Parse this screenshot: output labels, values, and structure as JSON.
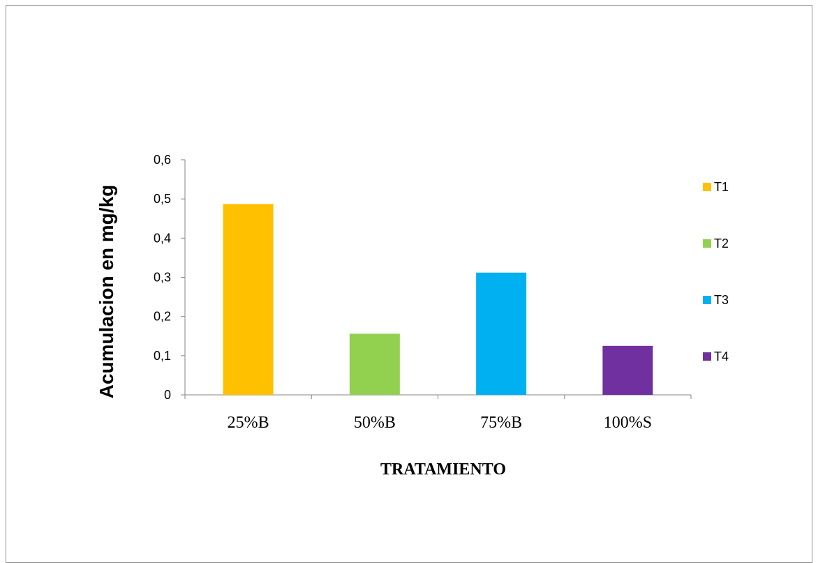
{
  "chart_data": {
    "type": "bar",
    "categories": [
      "25%B",
      "50%B",
      "75%B",
      "100%S"
    ],
    "values": [
      0.487,
      0.156,
      0.312,
      0.125
    ],
    "colors": [
      "#FFC000",
      "#92D050",
      "#00B0F0",
      "#7030A0"
    ],
    "legend": {
      "position": "right",
      "entries": [
        "T1",
        "T2",
        "T3",
        "T4"
      ]
    },
    "title": "",
    "xlabel": "TRATAMIENTO",
    "ylabel": "Acumulacion en  mg/kg",
    "ylim": [
      0,
      0.6
    ],
    "yticks": [
      0,
      0.1,
      0.2,
      0.3,
      0.4,
      0.5,
      0.6
    ],
    "ytick_labels": [
      "0",
      "0,1",
      "0,2",
      "0,3",
      "0,4",
      "0,5",
      "0,6"
    ],
    "grid": false
  }
}
